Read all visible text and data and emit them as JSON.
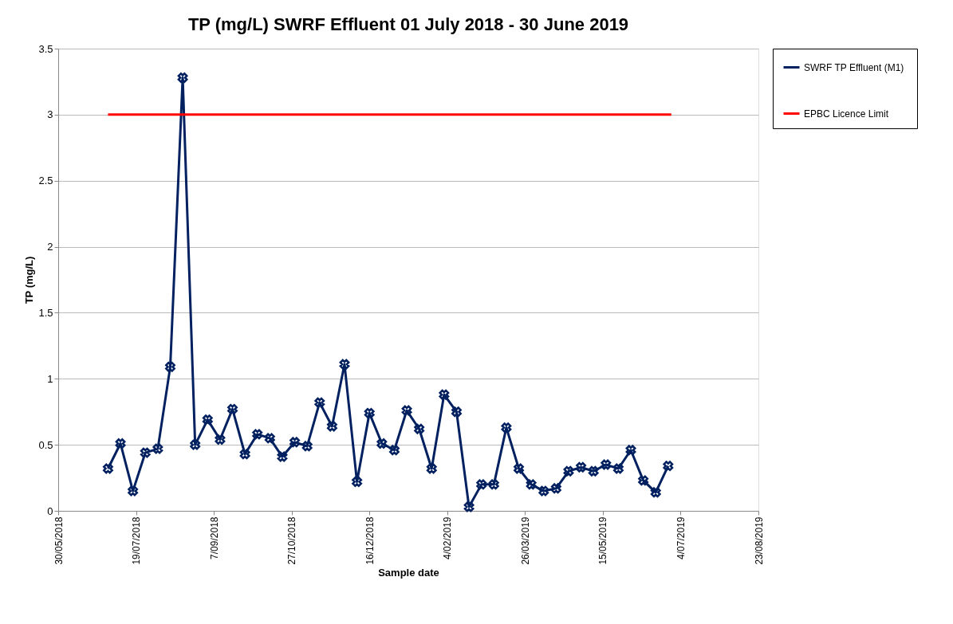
{
  "chart_data": {
    "type": "line",
    "title": "TP (mg/L) SWRF Effluent 01 July 2018 - 30 June 2019",
    "xlabel": "Sample date",
    "ylabel": "TP (mg/L)",
    "x": [
      "2018-07-01",
      "2018-07-09",
      "2018-07-17",
      "2018-07-25",
      "2018-08-02",
      "2018-08-10",
      "2018-08-18",
      "2018-08-26",
      "2018-09-03",
      "2018-09-11",
      "2018-09-19",
      "2018-09-27",
      "2018-10-05",
      "2018-10-13",
      "2018-10-21",
      "2018-10-29",
      "2018-11-06",
      "2018-11-14",
      "2018-11-22",
      "2018-11-30",
      "2018-12-08",
      "2018-12-16",
      "2018-12-24",
      "2019-01-01",
      "2019-01-09",
      "2019-01-17",
      "2019-01-25",
      "2019-02-02",
      "2019-02-10",
      "2019-02-18",
      "2019-02-26",
      "2019-03-06",
      "2019-03-14",
      "2019-03-22",
      "2019-03-30",
      "2019-04-07",
      "2019-04-15",
      "2019-04-23",
      "2019-05-01",
      "2019-05-09",
      "2019-05-17",
      "2019-05-25",
      "2019-06-02",
      "2019-06-10",
      "2019-06-18",
      "2019-06-26"
    ],
    "series": [
      {
        "name": "SWRF TP  Effluent (M1)",
        "color": "#002060",
        "marker": "cross",
        "values": [
          0.32,
          0.51,
          0.15,
          0.44,
          0.47,
          1.09,
          3.28,
          0.5,
          0.69,
          0.54,
          0.77,
          0.43,
          0.58,
          0.55,
          0.41,
          0.52,
          0.49,
          0.82,
          0.64,
          1.11,
          0.22,
          0.74,
          0.51,
          0.46,
          0.76,
          0.62,
          0.32,
          0.88,
          0.75,
          0.03,
          0.2,
          0.2,
          0.63,
          0.32,
          0.2,
          0.15,
          0.17,
          0.3,
          0.33,
          0.3,
          0.35,
          0.32,
          0.46,
          0.23,
          0.14,
          0.34
        ]
      },
      {
        "name": "EPBC Licence Limit",
        "color": "#ff0000",
        "marker": "none",
        "x": [
          "2018-07-01",
          "2019-06-28"
        ],
        "values": [
          3,
          3
        ]
      }
    ],
    "xlim": [
      "2018-05-30",
      "2019-08-23"
    ],
    "xticks": [
      {
        "value": "2018-05-30",
        "label": "30/05/2018"
      },
      {
        "value": "2018-07-19",
        "label": "19/07/2018"
      },
      {
        "value": "2018-09-07",
        "label": "7/09/2018"
      },
      {
        "value": "2018-10-27",
        "label": "27/10/2018"
      },
      {
        "value": "2018-12-16",
        "label": "16/12/2018"
      },
      {
        "value": "2019-02-04",
        "label": "4/02/2019"
      },
      {
        "value": "2019-03-26",
        "label": "26/03/2019"
      },
      {
        "value": "2019-05-15",
        "label": "15/05/2019"
      },
      {
        "value": "2019-07-04",
        "label": "4/07/2019"
      },
      {
        "value": "2019-08-23",
        "label": "23/08/2019"
      }
    ],
    "ylim": [
      0,
      3.5
    ],
    "yticks": [
      0,
      0.5,
      1,
      1.5,
      2,
      2.5,
      3,
      3.5
    ],
    "grid": "y",
    "legend": "right",
    "line_style": "solid"
  }
}
